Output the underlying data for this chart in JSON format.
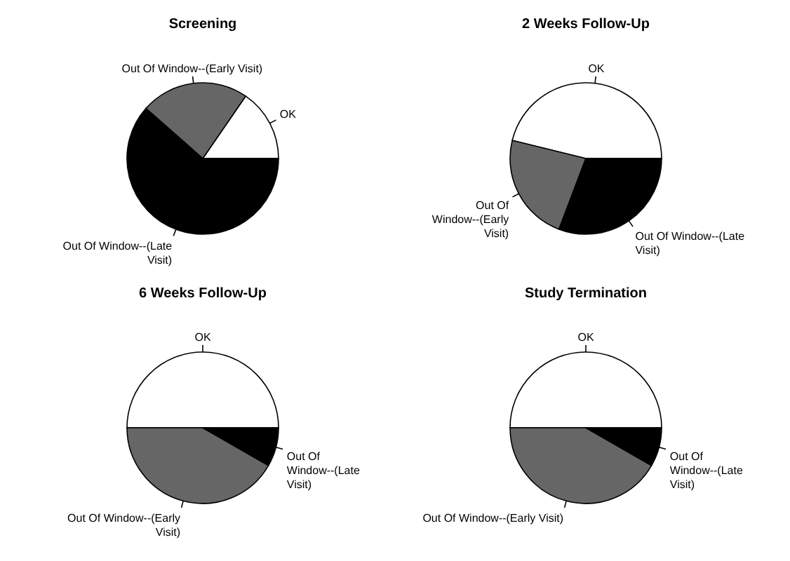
{
  "chart_data": [
    {
      "type": "pie",
      "title": "Screening",
      "categories": [
        "OK",
        "Out Of Window--(Early Visit)",
        "Out Of Window--(Late Visit)"
      ],
      "values": [
        15.4,
        23.1,
        61.5
      ],
      "colors": [
        "#ffffff",
        "#666666",
        "#000000"
      ]
    },
    {
      "type": "pie",
      "title": "2 Weeks Follow-Up",
      "categories": [
        "OK",
        "Out Of Window--(Early Visit)",
        "Out Of Window--(Late Visit)"
      ],
      "values": [
        46.2,
        23.1,
        30.8
      ],
      "colors": [
        "#ffffff",
        "#666666",
        "#000000"
      ]
    },
    {
      "type": "pie",
      "title": "6 Weeks Follow-Up",
      "categories": [
        "OK",
        "Out Of Window--(Early Visit)",
        "Out Of Window--(Late Visit)"
      ],
      "values": [
        50,
        41.7,
        8.3
      ],
      "colors": [
        "#ffffff",
        "#666666",
        "#000000"
      ]
    },
    {
      "type": "pie",
      "title": "Study Termination",
      "categories": [
        "OK",
        "Out Of Window--(Early Visit)",
        "Out Of Window--(Late Visit)"
      ],
      "values": [
        50,
        41.7,
        8.3
      ],
      "colors": [
        "#ffffff",
        "#666666",
        "#000000"
      ]
    }
  ]
}
